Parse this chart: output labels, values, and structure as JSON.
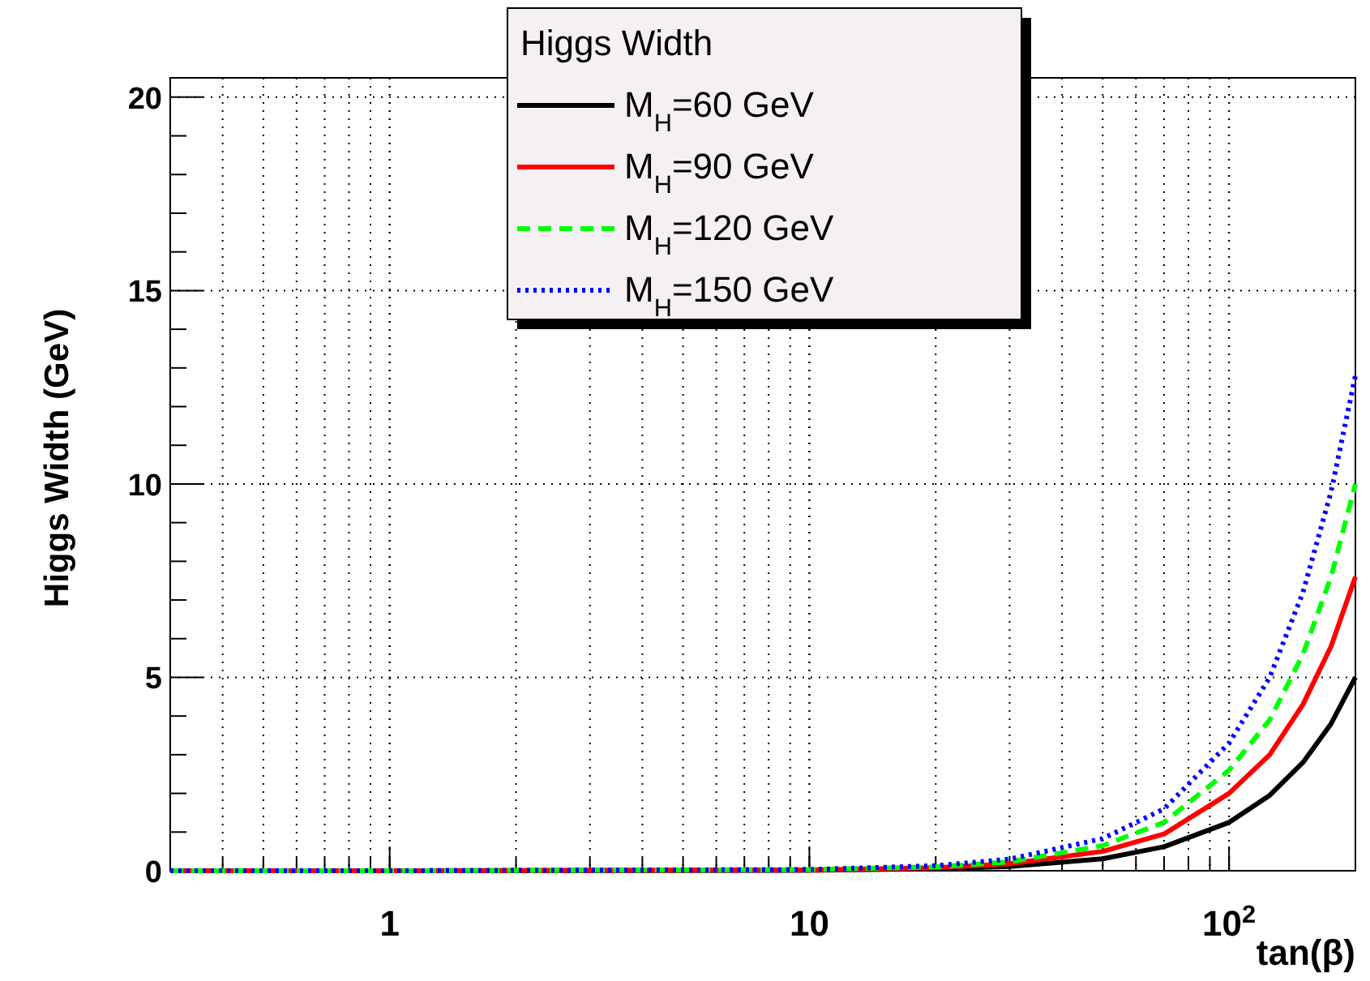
{
  "chart_data": {
    "type": "line",
    "xlabel": "tan(β)",
    "ylabel": "Higgs Width (GeV)",
    "legend_title": "Higgs Width",
    "log": "x",
    "x": [
      0.3,
      1,
      10,
      20,
      30,
      50,
      70,
      100,
      125,
      150,
      175,
      200
    ],
    "xlim": [
      0.3,
      200
    ],
    "xticks": [
      1,
      10,
      {
        "value": 100,
        "label": "10$^{2}$"
      }
    ],
    "ylim": [
      0,
      20.5
    ],
    "yticks": [
      0,
      5,
      10,
      15,
      20
    ],
    "grid": true,
    "legend": "top",
    "series": [
      {
        "name": "M$_{H}$=60 GeV",
        "color": "#000000",
        "line_style": "solid",
        "values": [
          0,
          0,
          0.01,
          0.05,
          0.11,
          0.31,
          0.62,
          1.25,
          1.95,
          2.8,
          3.8,
          5.0
        ]
      },
      {
        "name": "M$_{H}$=90 GeV",
        "color": "#ff0000",
        "line_style": "solid",
        "values": [
          0,
          0,
          0.02,
          0.08,
          0.18,
          0.5,
          0.95,
          2.0,
          3.0,
          4.3,
          5.8,
          7.6
        ]
      },
      {
        "name": "M$_{H}$=120 GeV",
        "color": "#00ff00",
        "line_style": "dashed",
        "values": [
          0,
          0,
          0.03,
          0.1,
          0.23,
          0.65,
          1.25,
          2.6,
          3.9,
          5.6,
          7.6,
          10.0
        ]
      },
      {
        "name": "M$_{H}$=150 GeV",
        "color": "#0000ff",
        "line_style": "dotted",
        "values": [
          0,
          0,
          0.03,
          0.13,
          0.3,
          0.83,
          1.6,
          3.3,
          5.0,
          7.2,
          9.8,
          12.8
        ]
      }
    ]
  }
}
